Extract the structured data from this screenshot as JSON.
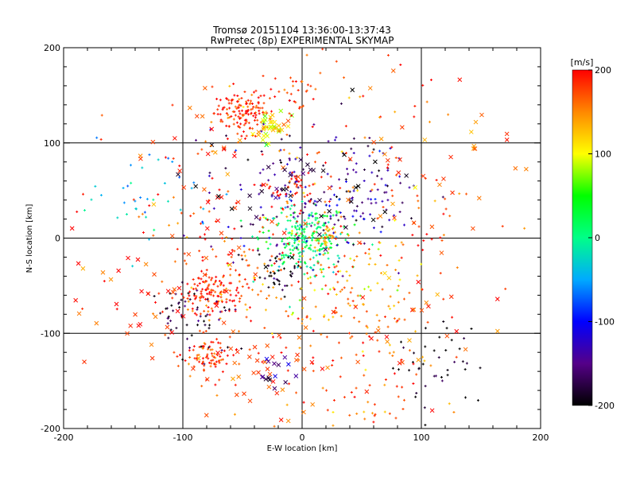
{
  "chart_data": {
    "type": "scatter",
    "title": "Tromsø 20151104 13:36:00-13:37:43",
    "subtitle": "RwPretec (8p) EXPERIMENTAL SKYMAP",
    "xlabel": "E-W location [km]",
    "ylabel": "N-S location [km]",
    "xlim": [
      -200,
      200
    ],
    "ylim": [
      -200,
      200
    ],
    "xticks": [
      -200,
      -100,
      0,
      100,
      200
    ],
    "yticks": [
      -200,
      -100,
      0,
      100,
      200
    ],
    "grid": true,
    "colorbar": {
      "label": "[m/s]",
      "range": [
        -200,
        200
      ],
      "ticks": [
        200,
        100,
        0,
        -100,
        -200
      ],
      "colormap": [
        "#000000",
        "#550088",
        "#0000ff",
        "#00aaff",
        "#00ff88",
        "#00ff00",
        "#ffff00",
        "#ff8800",
        "#ff0000"
      ]
    },
    "markers": {
      "plus": "small plus",
      "cross": "cross"
    },
    "clusters": [
      {
        "x": -50,
        "y": 132,
        "spread": 12,
        "count": 140,
        "v": 190,
        "marker": "plus"
      },
      {
        "x": -25,
        "y": 115,
        "spread": 8,
        "count": 40,
        "v": 105,
        "marker": "cross"
      },
      {
        "x": -5,
        "y": 155,
        "spread": 10,
        "count": 25,
        "v": 180,
        "marker": "plus"
      },
      {
        "x": 0,
        "y": 0,
        "spread": 18,
        "count": 230,
        "v": 10,
        "marker": "plus"
      },
      {
        "x": 18,
        "y": 0,
        "spread": 6,
        "count": 30,
        "v": 140,
        "marker": "plus"
      },
      {
        "x": 0,
        "y": 50,
        "spread": 40,
        "count": 150,
        "v": -150,
        "marker": "plus"
      },
      {
        "x": -10,
        "y": 52,
        "spread": 10,
        "count": 40,
        "v": 190,
        "marker": "plus"
      },
      {
        "x": -75,
        "y": -60,
        "spread": 12,
        "count": 110,
        "v": 195,
        "marker": "plus"
      },
      {
        "x": -80,
        "y": -125,
        "spread": 10,
        "count": 70,
        "v": 180,
        "marker": "plus"
      },
      {
        "x": -50,
        "y": -40,
        "spread": 30,
        "count": 90,
        "v": 170,
        "marker": "plus"
      },
      {
        "x": -20,
        "y": -35,
        "spread": 10,
        "count": 40,
        "v": -190,
        "marker": "plus"
      },
      {
        "x": 40,
        "y": -75,
        "spread": 30,
        "count": 70,
        "v": 150,
        "marker": "plus"
      },
      {
        "x": 60,
        "y": -170,
        "spread": 30,
        "count": 50,
        "v": 170,
        "marker": "plus"
      },
      {
        "x": 110,
        "y": -130,
        "spread": 20,
        "count": 40,
        "v": -200,
        "marker": "plus"
      },
      {
        "x": -90,
        "y": -80,
        "spread": 20,
        "count": 60,
        "v": -180,
        "marker": "plus"
      },
      {
        "x": 90,
        "y": 20,
        "spread": 45,
        "count": 60,
        "v": 175,
        "marker": "plus"
      },
      {
        "x": -130,
        "y": 40,
        "spread": 30,
        "count": 40,
        "v": -40,
        "marker": "plus"
      },
      {
        "x": 50,
        "y": 45,
        "spread": 25,
        "count": 60,
        "v": -140,
        "marker": "plus"
      },
      {
        "x": -30,
        "y": -145,
        "spread": 25,
        "count": 40,
        "v": 175,
        "marker": "cross"
      },
      {
        "x": -25,
        "y": -140,
        "spread": 8,
        "count": 15,
        "v": -150,
        "marker": "cross"
      },
      {
        "x": -70,
        "y": 45,
        "spread": 40,
        "count": 40,
        "v": 175,
        "marker": "cross"
      },
      {
        "x": 0,
        "y": 40,
        "spread": 35,
        "count": 40,
        "v": -195,
        "marker": "cross"
      },
      {
        "x": 110,
        "y": 70,
        "spread": 50,
        "count": 40,
        "v": 160,
        "marker": "cross"
      },
      {
        "x": -150,
        "y": -60,
        "spread": 40,
        "count": 40,
        "v": 180,
        "marker": "cross"
      },
      {
        "x": 20,
        "y": -40,
        "spread": 40,
        "count": 60,
        "v": 120,
        "marker": "plus"
      },
      {
        "x": 0,
        "y": -90,
        "spread": 60,
        "count": 80,
        "v": 185,
        "marker": "plus"
      },
      {
        "x": 90,
        "y": -90,
        "spread": 30,
        "count": 30,
        "v": 170,
        "marker": "cross"
      },
      {
        "x": 0,
        "y": 90,
        "spread": 70,
        "count": 50,
        "v": 160,
        "marker": "plus"
      },
      {
        "x": -110,
        "y": 20,
        "spread": 40,
        "count": 30,
        "v": 190,
        "marker": "plus"
      },
      {
        "x": 40,
        "y": 120,
        "spread": 50,
        "count": 30,
        "v": 180,
        "marker": "plus"
      }
    ]
  }
}
